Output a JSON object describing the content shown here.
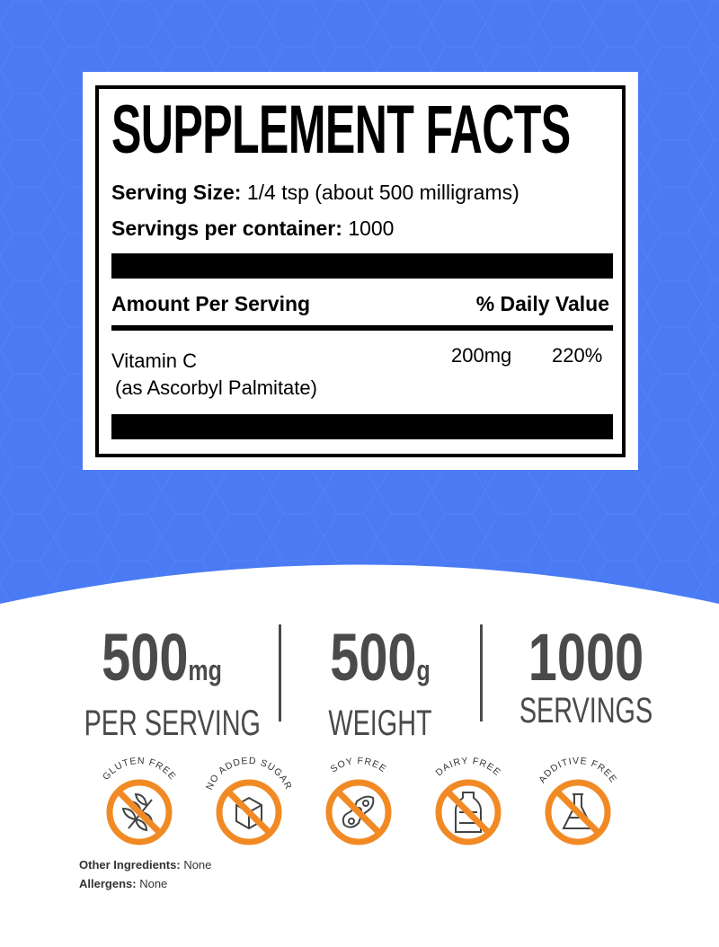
{
  "colors": {
    "background_blue": "#4a7bf4",
    "icon_orange": "#f18a25",
    "stat_gray": "#4a4a4a"
  },
  "facts": {
    "title": "SUPPLEMENT FACTS",
    "serving_size_label": "Serving Size:",
    "serving_size_value": "1/4 tsp (about 500 milligrams)",
    "servings_label": "Servings per container:",
    "servings_value": "1000",
    "amount_header": "Amount Per Serving",
    "dv_header": "% Daily Value",
    "nutrient_name": "Vitamin C",
    "nutrient_source": "(as Ascorbyl Palmitate)",
    "nutrient_amount": "200mg",
    "nutrient_dv": "220%"
  },
  "stats": [
    {
      "value": "500",
      "unit": "mg",
      "label": "PER SERVING"
    },
    {
      "value": "500",
      "unit": "g",
      "label": "WEIGHT"
    },
    {
      "value": "1000",
      "unit": "",
      "label": "SERVINGS"
    }
  ],
  "badges": [
    {
      "label": "GLUTEN FREE",
      "icon": "wheat-icon"
    },
    {
      "label": "NO ADDED SUGAR",
      "icon": "sugar-cube-icon"
    },
    {
      "label": "SOY FREE",
      "icon": "soybean-icon"
    },
    {
      "label": "DAIRY FREE",
      "icon": "milk-bottle-icon"
    },
    {
      "label": "ADDITIVE FREE",
      "icon": "flask-icon"
    }
  ],
  "footer": {
    "other_label": "Other Ingredients:",
    "other_value": "None",
    "allergens_label": "Allergens:",
    "allergens_value": "None"
  }
}
